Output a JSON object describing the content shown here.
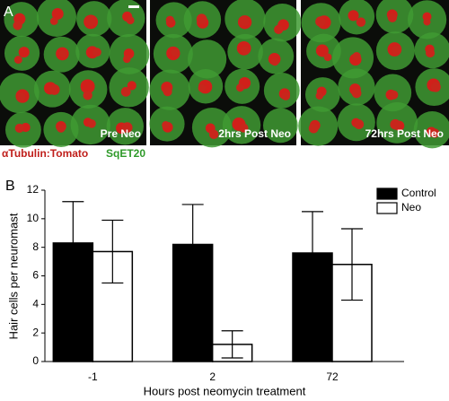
{
  "panel_a": {
    "label": "A",
    "images": [
      {
        "caption": "Pre Neo"
      },
      {
        "caption": "2hrs Post Neo"
      },
      {
        "caption": "72hrs Post Neo"
      }
    ],
    "stain_red": "αTubulin:Tomato",
    "stain_green": "SqET20"
  },
  "chart_data": {
    "type": "bar",
    "panel_label": "B",
    "x_label": "Hours post neomycin treatment",
    "y_label": "Hair cells per neuromast",
    "categories": [
      "-1",
      "2",
      "72"
    ],
    "series": [
      {
        "name": "Control",
        "color": "#000000",
        "values": [
          8.3,
          8.2,
          7.6
        ],
        "errors": [
          2.9,
          2.8,
          2.9
        ]
      },
      {
        "name": "Neo",
        "color": "#ffffff",
        "values": [
          7.7,
          1.2,
          6.8
        ],
        "errors": [
          2.2,
          0.95,
          2.5
        ]
      }
    ],
    "ylim": [
      0,
      12
    ],
    "yticks": [
      0,
      2,
      4,
      6,
      8,
      10,
      12
    ],
    "legend": "upper right"
  }
}
